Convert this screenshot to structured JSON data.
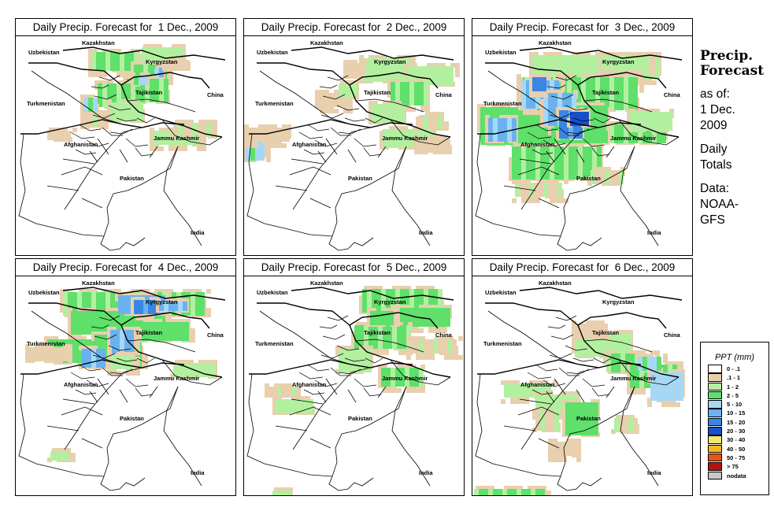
{
  "panels": [
    {
      "title": "Daily Precip. Forecast for  1 Dec., 2009",
      "day": 1
    },
    {
      "title": "Daily Precip. Forecast for  2 Dec., 2009",
      "day": 2
    },
    {
      "title": "Daily Precip. Forecast for  3 Dec., 2009",
      "day": 3
    },
    {
      "title": "Daily Precip. Forecast for  4 Dec., 2009",
      "day": 4
    },
    {
      "title": "Daily Precip. Forecast for  5 Dec., 2009",
      "day": 5
    },
    {
      "title": "Daily Precip. Forecast for  6 Dec., 2009",
      "day": 6
    }
  ],
  "map_labels": {
    "kazakhstan": "Kazakhstan",
    "uzbekistan": "Uzbekistan",
    "kyrgyzstan": "Kyrgyzstan",
    "tajikistan": "Tajikistan",
    "turkmenistan": "Turkmenistan",
    "china": "China",
    "afghanistan": "Afghanistan",
    "jammu_kashmir": "Jammu Kashmir",
    "pakistan": "Pakistan",
    "india": "India"
  },
  "sidebar": {
    "title_line1": "Precip.",
    "title_line2": "Forecast",
    "asof_line1": "as of:",
    "asof_line2": "1 Dec.",
    "asof_line3": "2009",
    "daily_line1": "Daily",
    "daily_line2": "Totals",
    "data_line1": "Data:",
    "data_line2": "NOAA-",
    "data_line3": "GFS"
  },
  "legend": {
    "title": "PPT (mm)",
    "items": [
      {
        "label": "0 - .1",
        "color": "#ffffff"
      },
      {
        "label": ".1 - 1",
        "color": "#e8cfae"
      },
      {
        "label": "1 - 2",
        "color": "#b2f0a0"
      },
      {
        "label": "2 - 5",
        "color": "#5ee06a"
      },
      {
        "label": "5 - 10",
        "color": "#a6d8f5"
      },
      {
        "label": "10 - 15",
        "color": "#6ab2ef"
      },
      {
        "label": "15 - 20",
        "color": "#3a86e6"
      },
      {
        "label": "20 - 30",
        "color": "#1450cc"
      },
      {
        "label": "30 - 40",
        "color": "#f2e46e"
      },
      {
        "label": "40 - 50",
        "color": "#f7b820"
      },
      {
        "label": "50 - 75",
        "color": "#e85418"
      },
      {
        "label": "> 75",
        "color": "#b01414"
      },
      {
        "label": "nodata",
        "color": "#c8c8c8"
      }
    ]
  }
}
